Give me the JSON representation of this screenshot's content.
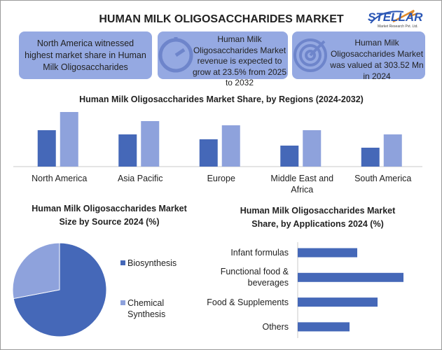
{
  "header": {
    "title": "HUMAN MILK OLIGOSACCHARIDES MARKET",
    "logo": {
      "name": "STELLAR",
      "tagline": "Market Research Pvt. Ltd."
    }
  },
  "highlights": [
    "North America witnessed highest market share in Human Milk Oligosaccharides",
    "Human Milk Oligosaccharides Market revenue is expected to grow at 23.5% from 2025 to 2032",
    "Human Milk Oligosaccharides Market was valued at 303.52 Mn in 2024"
  ],
  "chart_data": [
    {
      "type": "bar",
      "title": "Human Milk Oligosaccharides Market Share, by Regions (2024-2032)",
      "categories": [
        "North America",
        "Asia Pacific",
        "Europe",
        "Middle East and Africa",
        "South America"
      ],
      "series": [
        {
          "color": "#4568b8",
          "values": [
            52,
            46,
            39,
            30,
            27
          ]
        },
        {
          "color": "#8ea2dc",
          "values": [
            78,
            65,
            59,
            52,
            46
          ]
        }
      ],
      "ylim": [
        0,
        80
      ]
    },
    {
      "type": "pie",
      "title": "Human Milk Oligosaccharides Market Size by Source 2024 (%)",
      "categories": [
        "Biosynthesis",
        "Chemical Synthesis"
      ],
      "values": [
        72,
        28
      ],
      "colors": [
        "#4568b8",
        "#8ea2dc"
      ],
      "legend": "right"
    },
    {
      "type": "barh",
      "title": "Human Milk Oligosaccharides Market Share, by Applications 2024 (%)",
      "categories": [
        "Infant formulas",
        "Functional food & beverages",
        "Food & Supplements",
        "Others"
      ],
      "values": [
        85,
        151,
        114,
        74
      ],
      "color": "#4568b8",
      "xlim": [
        0,
        160
      ]
    }
  ]
}
